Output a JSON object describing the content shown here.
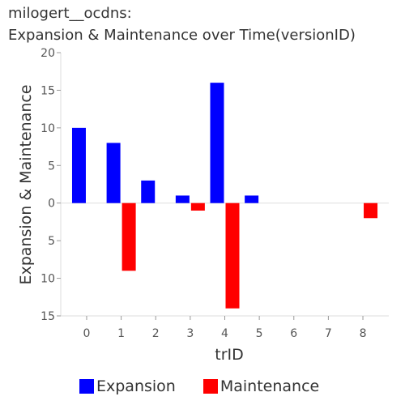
{
  "chart_data": {
    "type": "bar",
    "title": "milogert__ocdns:",
    "subtitle": "Expansion & Maintenance over Time(versionID)",
    "xlabel": "trID",
    "ylabel": "Expansion & Maintenance",
    "categories": [
      "0",
      "1",
      "2",
      "3",
      "4",
      "5",
      "6",
      "7",
      "8"
    ],
    "ylim": [
      -15,
      20
    ],
    "y_ticks": [
      20,
      15,
      10,
      5,
      0,
      -5,
      -10,
      -15
    ],
    "y_tick_labels": [
      "20",
      "15",
      "10",
      "5",
      "0",
      "5",
      "10",
      "15"
    ],
    "series": [
      {
        "name": "Expansion",
        "color": "#0000ff",
        "values": [
          10,
          8,
          3,
          1,
          16,
          1,
          0,
          0,
          0
        ]
      },
      {
        "name": "Maintenance",
        "color": "#ff0000",
        "values": [
          0,
          -9,
          0,
          -1,
          -14,
          0,
          0,
          0,
          -2
        ]
      }
    ],
    "legend_position": "bottom",
    "grid": false
  }
}
